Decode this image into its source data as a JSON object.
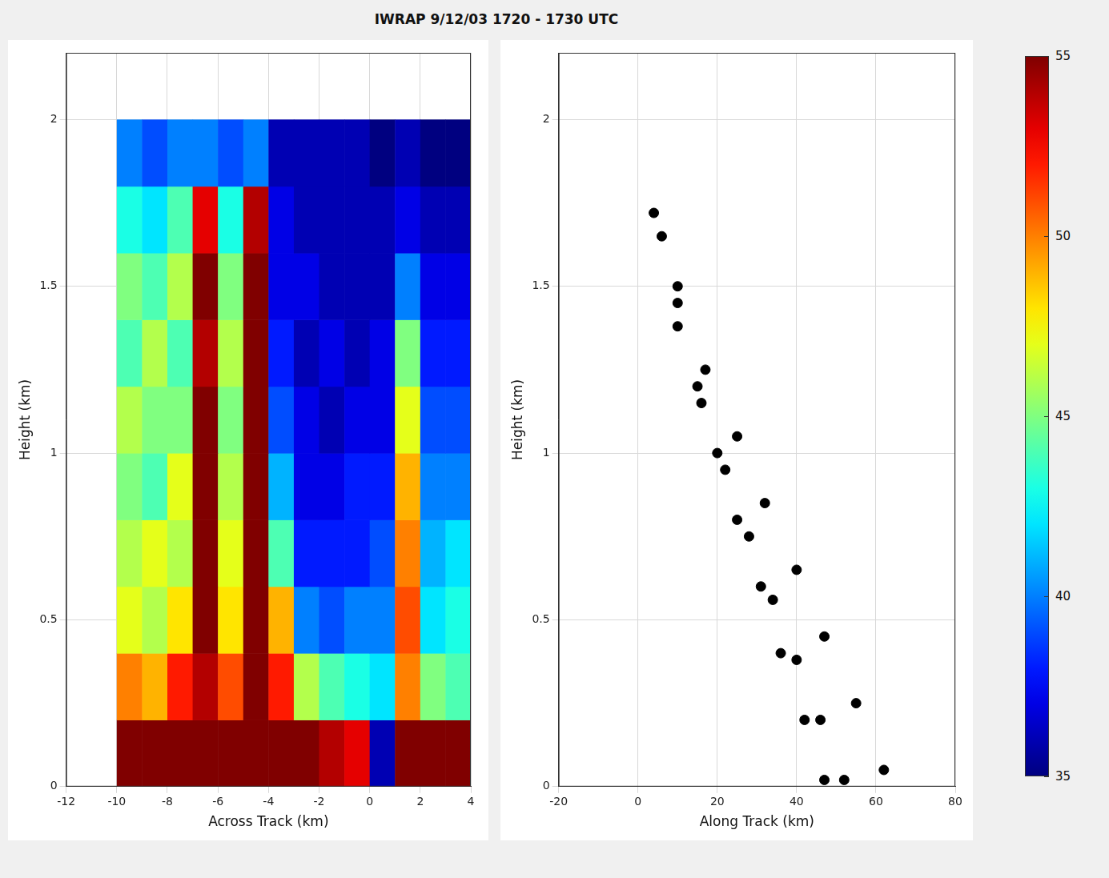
{
  "chart_data": [
    {
      "type": "heatmap",
      "title": "IWRAP 9/12/03 1720 - 1730 UTC",
      "x_label": "Across Track (km)",
      "y_label": "Height (km)",
      "xlim": [
        -12,
        4
      ],
      "xticks": [
        -12,
        -10,
        -8,
        -6,
        -4,
        -2,
        0,
        2,
        4
      ],
      "ylim": [
        0,
        2.2
      ],
      "yticks": [
        0,
        0.5,
        1,
        1.5,
        2
      ],
      "grid": true,
      "x_bins": [
        -10,
        -9,
        -8,
        -7,
        -6,
        -5,
        -4,
        -3,
        -2,
        -1,
        0,
        1,
        2,
        3,
        4
      ],
      "y_bins": [
        0,
        0.2,
        0.4,
        0.6,
        0.8,
        1.0,
        1.2,
        1.4,
        1.6,
        1.8,
        2.0
      ],
      "cells": [
        [
          55,
          55,
          55,
          55,
          55,
          55,
          55,
          55,
          54,
          53,
          36,
          55,
          55,
          55
        ],
        [
          50,
          49,
          52,
          54,
          51,
          55,
          52,
          46,
          44,
          43,
          42,
          50,
          45,
          44
        ],
        [
          47,
          46,
          48,
          55,
          48,
          55,
          49,
          40,
          39,
          40,
          40,
          51,
          42,
          43
        ],
        [
          46,
          47,
          46,
          55,
          47,
          55,
          44,
          38,
          38,
          38,
          39,
          50,
          41,
          42
        ],
        [
          45,
          44,
          47,
          55,
          46,
          55,
          41,
          37,
          37,
          38,
          38,
          49,
          40,
          40
        ],
        [
          46,
          45,
          45,
          55,
          45,
          55,
          39,
          37,
          36,
          37,
          37,
          47,
          39,
          39
        ],
        [
          44,
          46,
          44,
          54,
          46,
          55,
          38,
          36,
          37,
          36,
          37,
          45,
          38,
          38
        ],
        [
          45,
          44,
          46,
          55,
          45,
          55,
          37,
          37,
          36,
          36,
          36,
          40,
          37,
          37
        ],
        [
          43,
          42,
          44,
          53,
          43,
          54,
          37,
          36,
          36,
          36,
          36,
          37,
          36,
          36
        ],
        [
          40,
          39,
          40,
          40,
          39,
          40,
          36,
          36,
          36,
          36,
          35,
          36,
          35,
          35
        ]
      ],
      "colorbar": {
        "range": [
          35,
          55
        ],
        "ticks": [
          35,
          40,
          45,
          50,
          55
        ]
      }
    },
    {
      "type": "scatter",
      "x_label": "Along Track (km)",
      "y_label": "Height (km)",
      "xlim": [
        -20,
        80
      ],
      "xticks": [
        -20,
        0,
        20,
        40,
        60,
        80
      ],
      "ylim": [
        0,
        2.2
      ],
      "yticks": [
        0,
        0.5,
        1,
        1.5,
        2
      ],
      "grid": true,
      "marker": "circle",
      "series": [
        {
          "color": "#000000",
          "x": [
            62,
            55,
            47,
            40,
            32,
            25,
            17,
            10,
            4
          ],
          "y": [
            0.05,
            0.25,
            0.45,
            0.65,
            0.85,
            1.05,
            1.25,
            1.45,
            1.72
          ]
        },
        {
          "color": "#000000",
          "x": [
            52,
            46,
            40,
            34,
            28,
            22,
            16,
            10,
            6
          ],
          "y": [
            0.02,
            0.2,
            0.38,
            0.56,
            0.75,
            0.95,
            1.15,
            1.38,
            1.65
          ]
        },
        {
          "color": "#000000",
          "x": [
            47,
            42,
            36,
            31,
            25,
            20,
            15,
            10
          ],
          "y": [
            0.02,
            0.2,
            0.4,
            0.6,
            0.8,
            1.0,
            1.2,
            1.5
          ]
        }
      ]
    }
  ]
}
